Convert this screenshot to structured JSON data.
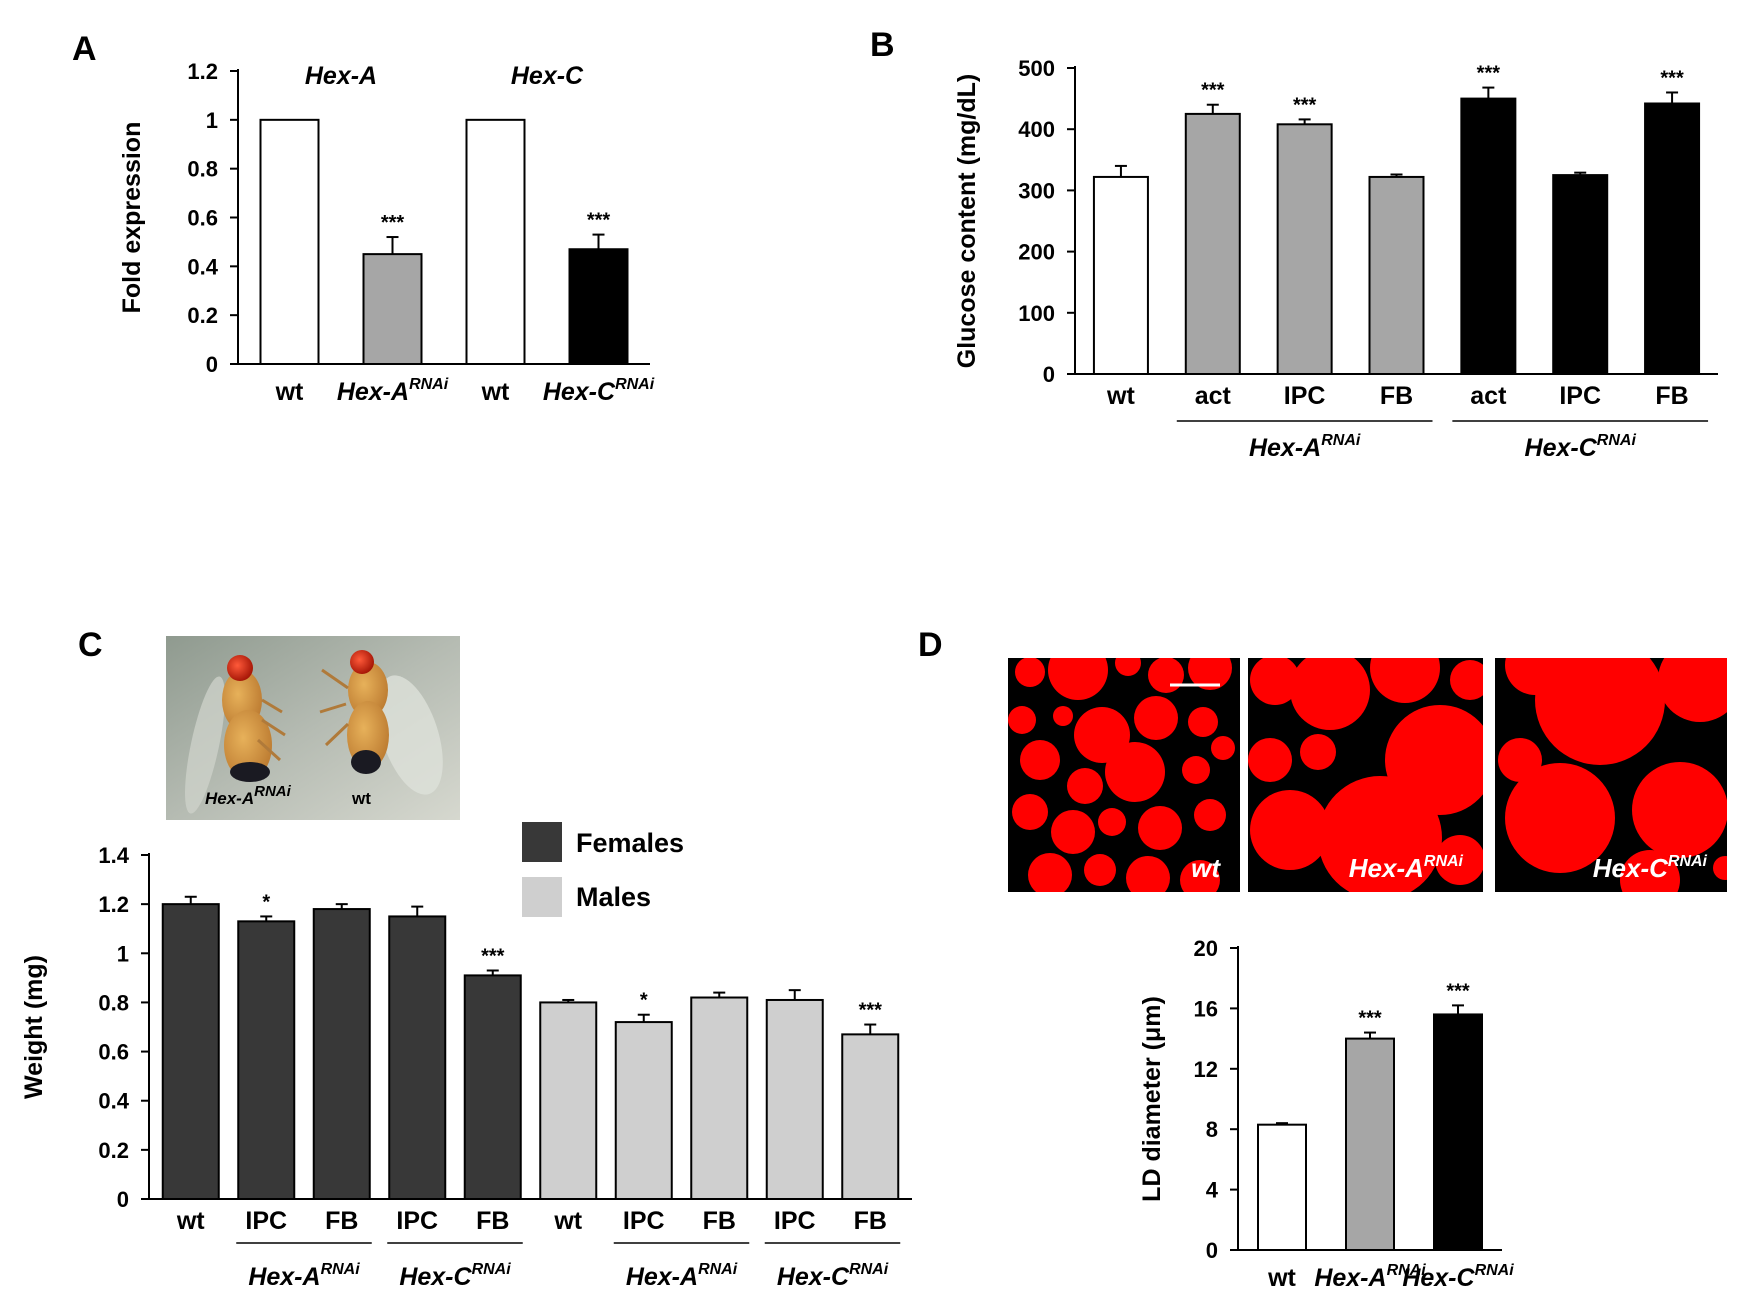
{
  "panels": {
    "A": {
      "letter": "A"
    },
    "B": {
      "letter": "B"
    },
    "C": {
      "letter": "C"
    },
    "D": {
      "letter": "D"
    }
  },
  "colors": {
    "wt": "#ffffff",
    "hexA": "#a6a6a6",
    "hexC": "#000000",
    "females": "#383838",
    "males": "#cfcfcf",
    "lipid": "#ff0000",
    "background": "#000000"
  },
  "fly_photo": {
    "label_left": "Hex-A",
    "label_left_sup": "RNAi",
    "label_right": "wt"
  },
  "micrographs": [
    {
      "label": "wt",
      "sup": ""
    },
    {
      "label": "Hex-A",
      "sup": "RNAi"
    },
    {
      "label": "Hex-C",
      "sup": "RNAi"
    }
  ],
  "chart_data": [
    {
      "id": "A",
      "type": "bar",
      "ylabel": "Fold expression",
      "ylim": [
        0,
        1.2
      ],
      "yticks": [
        "0",
        "0.2",
        "0.4",
        "0.6",
        "0.8",
        "1",
        "1.2"
      ],
      "group_titles": [
        "Hex-A",
        "Hex-C"
      ],
      "categories": [
        {
          "label": "wt",
          "sup": ""
        },
        {
          "label": "Hex-A",
          "sup": "RNAi"
        },
        {
          "label": "wt",
          "sup": ""
        },
        {
          "label": "Hex-C",
          "sup": "RNAi"
        }
      ],
      "values": [
        1.0,
        0.45,
        1.0,
        0.47
      ],
      "errors": [
        0,
        0.07,
        0,
        0.06
      ],
      "colors": [
        "wt",
        "hexA",
        "wt",
        "hexC"
      ],
      "significance": [
        "",
        "***",
        "",
        "***"
      ]
    },
    {
      "id": "B",
      "type": "bar",
      "ylabel": "Glucose content (mg/dL)",
      "ylim": [
        0,
        500
      ],
      "yticks": [
        "0",
        "100",
        "200",
        "300",
        "400",
        "500"
      ],
      "categories": [
        "wt",
        "act",
        "IPC",
        "FB",
        "act",
        "IPC",
        "FB"
      ],
      "values": [
        322,
        425,
        408,
        322,
        450,
        325,
        442
      ],
      "errors": [
        18,
        15,
        8,
        4,
        18,
        4,
        18
      ],
      "colors": [
        "wt",
        "hexA",
        "hexA",
        "hexA",
        "hexC",
        "hexC",
        "hexC"
      ],
      "significance": [
        "",
        "***",
        "***",
        "",
        "***",
        "",
        "***"
      ],
      "groups": [
        {
          "label": "Hex-A",
          "sup": "RNAi"
        },
        {
          "label": "Hex-C",
          "sup": "RNAi"
        }
      ]
    },
    {
      "id": "C",
      "type": "bar",
      "ylabel": "Weight (mg)",
      "ylim": [
        0,
        1.4
      ],
      "yticks": [
        "0",
        "0.2",
        "0.4",
        "0.6",
        "0.8",
        "1",
        "1.2",
        "1.4"
      ],
      "categories": [
        "wt",
        "IPC",
        "FB",
        "IPC",
        "FB",
        "wt",
        "IPC",
        "FB",
        "IPC",
        "FB"
      ],
      "values": [
        1.2,
        1.13,
        1.18,
        1.15,
        0.91,
        0.8,
        0.72,
        0.82,
        0.81,
        0.67
      ],
      "errors": [
        0.03,
        0.02,
        0.02,
        0.04,
        0.02,
        0.01,
        0.03,
        0.02,
        0.04,
        0.04
      ],
      "series_of_bar": [
        "Females",
        "Females",
        "Females",
        "Females",
        "Females",
        "Males",
        "Males",
        "Males",
        "Males",
        "Males"
      ],
      "significance": [
        "",
        "*",
        "",
        "",
        "***",
        "",
        "*",
        "",
        "",
        "***"
      ],
      "legend": [
        "Females",
        "Males"
      ],
      "groups": [
        {
          "label": "Hex-A",
          "sup": "RNAi"
        },
        {
          "label": "Hex-C",
          "sup": "RNAi"
        },
        {
          "label": "Hex-A",
          "sup": "RNAi"
        },
        {
          "label": "Hex-C",
          "sup": "RNAi"
        }
      ]
    },
    {
      "id": "D",
      "type": "bar",
      "ylabel": "LD diameter (μm)",
      "ylim": [
        0,
        20
      ],
      "yticks": [
        "0",
        "4",
        "8",
        "12",
        "16",
        "20"
      ],
      "categories": [
        {
          "label": "wt",
          "sup": ""
        },
        {
          "label": "Hex-A",
          "sup": "RNAi"
        },
        {
          "label": "Hex-C",
          "sup": "RNAi"
        }
      ],
      "values": [
        8.3,
        14.0,
        15.6
      ],
      "errors": [
        0.1,
        0.4,
        0.6
      ],
      "colors": [
        "wt",
        "hexA",
        "hexC"
      ],
      "significance": [
        "",
        "***",
        "***"
      ]
    }
  ]
}
